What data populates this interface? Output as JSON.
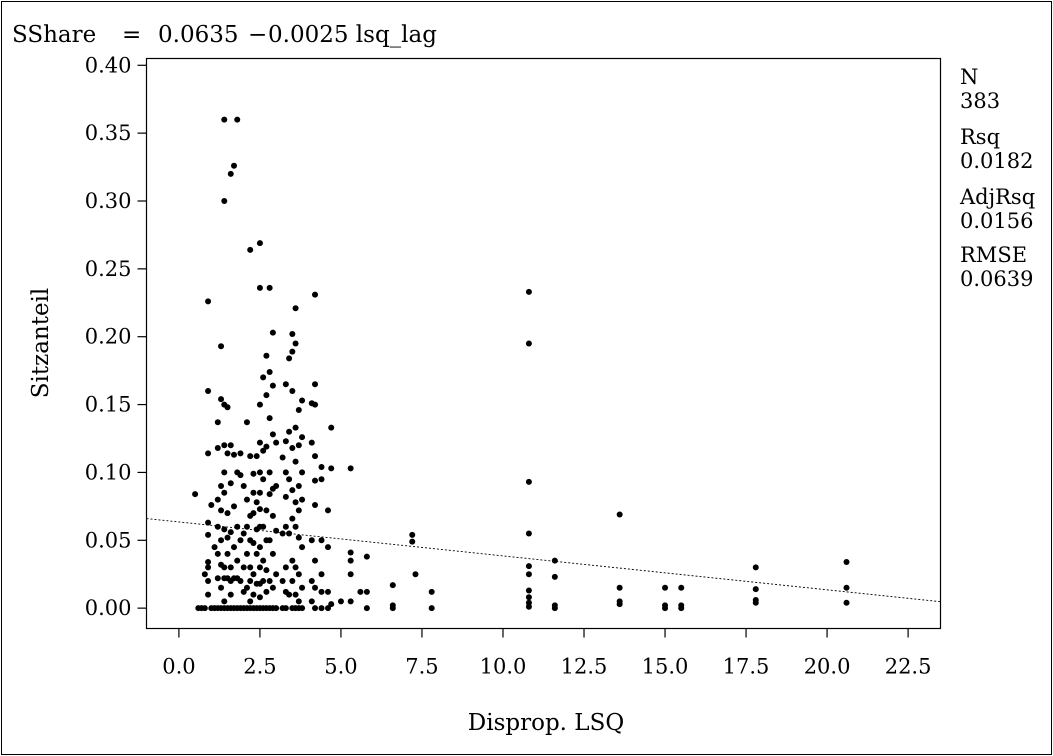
{
  "header": {
    "equation_lhs": "SShare",
    "equation_eq": "=",
    "equation_intercept": "0.0635",
    "equation_sign": "−",
    "equation_slope_term": "0.0025 lsq_lag"
  },
  "stats": [
    {
      "label": "N",
      "value": "383"
    },
    {
      "label": "Rsq",
      "value": "0.0182"
    },
    {
      "label": "AdjRsq",
      "value": "0.0156"
    },
    {
      "label": "RMSE",
      "value": "0.0639"
    }
  ],
  "chart_data": {
    "type": "scatter",
    "title": "",
    "xlabel": "Disprop. LSQ",
    "ylabel": "Sitzanteil",
    "xlim": [
      -1.0,
      23.5
    ],
    "ylim": [
      -0.015,
      0.405
    ],
    "x_ticks": [
      0.0,
      2.5,
      5.0,
      7.5,
      10.0,
      12.5,
      15.0,
      17.5,
      20.0,
      22.5
    ],
    "x_tick_labels": [
      "0.0",
      "2.5",
      "5.0",
      "7.5",
      "10.0",
      "12.5",
      "15.0",
      "17.5",
      "20.0",
      "22.5"
    ],
    "y_ticks": [
      0.0,
      0.05,
      0.1,
      0.15,
      0.2,
      0.25,
      0.3,
      0.35,
      0.4
    ],
    "y_tick_labels": [
      "0.00",
      "0.05",
      "0.10",
      "0.15",
      "0.20",
      "0.25",
      "0.30",
      "0.35",
      "0.40"
    ],
    "grid": false,
    "fit_line": {
      "intercept": 0.0635,
      "slope": -0.0025,
      "style": "dotted"
    },
    "points": [
      [
        0.5,
        0.084
      ],
      [
        0.6,
        0.0
      ],
      [
        0.7,
        0.0
      ],
      [
        0.8,
        0.025
      ],
      [
        0.8,
        0.0
      ],
      [
        0.9,
        0.063
      ],
      [
        0.9,
        0.054
      ],
      [
        0.9,
        0.226
      ],
      [
        0.9,
        0.16
      ],
      [
        0.9,
        0.114
      ],
      [
        0.9,
        0.034
      ],
      [
        0.9,
        0.03
      ],
      [
        0.9,
        0.02
      ],
      [
        0.9,
        0.01
      ],
      [
        1.0,
        0.076
      ],
      [
        1.0,
        0.0
      ],
      [
        1.1,
        0.045
      ],
      [
        1.1,
        0.0
      ],
      [
        1.2,
        0.137
      ],
      [
        1.2,
        0.118
      ],
      [
        1.2,
        0.08
      ],
      [
        1.2,
        0.06
      ],
      [
        1.2,
        0.04
      ],
      [
        1.2,
        0.022
      ],
      [
        1.2,
        0.0
      ],
      [
        1.3,
        0.193
      ],
      [
        1.3,
        0.154
      ],
      [
        1.3,
        0.09
      ],
      [
        1.3,
        0.072
      ],
      [
        1.3,
        0.05
      ],
      [
        1.3,
        0.032
      ],
      [
        1.3,
        0.015
      ],
      [
        1.3,
        0.0
      ],
      [
        1.4,
        0.36
      ],
      [
        1.4,
        0.3
      ],
      [
        1.4,
        0.15
      ],
      [
        1.4,
        0.12
      ],
      [
        1.4,
        0.1
      ],
      [
        1.4,
        0.085
      ],
      [
        1.4,
        0.058
      ],
      [
        1.4,
        0.03
      ],
      [
        1.4,
        0.022
      ],
      [
        1.4,
        0.005
      ],
      [
        1.4,
        0.0
      ],
      [
        1.5,
        0.148
      ],
      [
        1.5,
        0.114
      ],
      [
        1.5,
        0.07
      ],
      [
        1.5,
        0.052
      ],
      [
        1.5,
        0.04
      ],
      [
        1.5,
        0.022
      ],
      [
        1.5,
        0.0
      ],
      [
        1.6,
        0.32
      ],
      [
        1.6,
        0.12
      ],
      [
        1.6,
        0.092
      ],
      [
        1.6,
        0.056
      ],
      [
        1.6,
        0.03
      ],
      [
        1.6,
        0.02
      ],
      [
        1.6,
        0.01
      ],
      [
        1.6,
        0.0
      ],
      [
        1.7,
        0.326
      ],
      [
        1.7,
        0.113
      ],
      [
        1.7,
        0.075
      ],
      [
        1.7,
        0.045
      ],
      [
        1.7,
        0.022
      ],
      [
        1.7,
        0.0
      ],
      [
        1.8,
        0.36
      ],
      [
        1.8,
        0.1
      ],
      [
        1.8,
        0.06
      ],
      [
        1.8,
        0.035
      ],
      [
        1.8,
        0.022
      ],
      [
        1.8,
        0.0
      ],
      [
        1.9,
        0.114
      ],
      [
        1.9,
        0.098
      ],
      [
        1.9,
        0.05
      ],
      [
        1.9,
        0.02
      ],
      [
        1.9,
        0.0
      ],
      [
        2.0,
        0.09
      ],
      [
        2.0,
        0.055
      ],
      [
        2.0,
        0.03
      ],
      [
        2.0,
        0.012
      ],
      [
        2.0,
        0.0
      ],
      [
        2.1,
        0.137
      ],
      [
        2.1,
        0.08
      ],
      [
        2.1,
        0.06
      ],
      [
        2.1,
        0.04
      ],
      [
        2.1,
        0.015
      ],
      [
        2.1,
        0.0
      ],
      [
        2.2,
        0.264
      ],
      [
        2.2,
        0.112
      ],
      [
        2.2,
        0.068
      ],
      [
        2.2,
        0.05
      ],
      [
        2.2,
        0.03
      ],
      [
        2.2,
        0.02
      ],
      [
        2.2,
        0.005
      ],
      [
        2.2,
        0.0
      ],
      [
        2.3,
        0.099
      ],
      [
        2.3,
        0.085
      ],
      [
        2.3,
        0.07
      ],
      [
        2.3,
        0.048
      ],
      [
        2.3,
        0.025
      ],
      [
        2.3,
        0.01
      ],
      [
        2.3,
        0.0
      ],
      [
        2.4,
        0.112
      ],
      [
        2.4,
        0.078
      ],
      [
        2.4,
        0.058
      ],
      [
        2.4,
        0.04
      ],
      [
        2.4,
        0.018
      ],
      [
        2.4,
        0.0
      ],
      [
        2.5,
        0.269
      ],
      [
        2.5,
        0.236
      ],
      [
        2.5,
        0.15
      ],
      [
        2.5,
        0.122
      ],
      [
        2.5,
        0.1
      ],
      [
        2.5,
        0.085
      ],
      [
        2.5,
        0.073
      ],
      [
        2.5,
        0.06
      ],
      [
        2.5,
        0.045
      ],
      [
        2.5,
        0.03
      ],
      [
        2.5,
        0.018
      ],
      [
        2.5,
        0.008
      ],
      [
        2.5,
        0.0
      ],
      [
        2.6,
        0.17
      ],
      [
        2.6,
        0.116
      ],
      [
        2.6,
        0.095
      ],
      [
        2.6,
        0.06
      ],
      [
        2.6,
        0.035
      ],
      [
        2.6,
        0.02
      ],
      [
        2.6,
        0.0
      ],
      [
        2.7,
        0.186
      ],
      [
        2.7,
        0.157
      ],
      [
        2.7,
        0.119
      ],
      [
        2.7,
        0.072
      ],
      [
        2.7,
        0.05
      ],
      [
        2.7,
        0.028
      ],
      [
        2.7,
        0.012
      ],
      [
        2.7,
        0.0
      ],
      [
        2.8,
        0.236
      ],
      [
        2.8,
        0.174
      ],
      [
        2.8,
        0.14
      ],
      [
        2.8,
        0.1
      ],
      [
        2.8,
        0.084
      ],
      [
        2.8,
        0.05
      ],
      [
        2.8,
        0.02
      ],
      [
        2.8,
        0.0
      ],
      [
        2.9,
        0.203
      ],
      [
        2.9,
        0.164
      ],
      [
        2.9,
        0.128
      ],
      [
        2.9,
        0.088
      ],
      [
        2.9,
        0.068
      ],
      [
        2.9,
        0.04
      ],
      [
        2.9,
        0.015
      ],
      [
        2.9,
        0.0
      ],
      [
        3.0,
        0.122
      ],
      [
        3.0,
        0.09
      ],
      [
        3.0,
        0.057
      ],
      [
        3.0,
        0.025
      ],
      [
        3.0,
        0.0
      ],
      [
        3.2,
        0.111
      ],
      [
        3.2,
        0.055
      ],
      [
        3.2,
        0.02
      ],
      [
        3.2,
        0.0
      ],
      [
        3.3,
        0.165
      ],
      [
        3.3,
        0.123
      ],
      [
        3.3,
        0.1
      ],
      [
        3.3,
        0.082
      ],
      [
        3.3,
        0.06
      ],
      [
        3.3,
        0.03
      ],
      [
        3.3,
        0.012
      ],
      [
        3.3,
        0.0
      ],
      [
        3.4,
        0.184
      ],
      [
        3.4,
        0.13
      ],
      [
        3.4,
        0.095
      ],
      [
        3.4,
        0.055
      ],
      [
        3.4,
        0.01
      ],
      [
        3.5,
        0.202
      ],
      [
        3.5,
        0.189
      ],
      [
        3.5,
        0.16
      ],
      [
        3.5,
        0.118
      ],
      [
        3.5,
        0.087
      ],
      [
        3.5,
        0.066
      ],
      [
        3.5,
        0.035
      ],
      [
        3.5,
        0.02
      ],
      [
        3.5,
        0.0
      ],
      [
        3.6,
        0.221
      ],
      [
        3.6,
        0.195
      ],
      [
        3.6,
        0.133
      ],
      [
        3.6,
        0.108
      ],
      [
        3.6,
        0.078
      ],
      [
        3.6,
        0.06
      ],
      [
        3.6,
        0.03
      ],
      [
        3.6,
        0.01
      ],
      [
        3.6,
        0.0
      ],
      [
        3.7,
        0.146
      ],
      [
        3.7,
        0.12
      ],
      [
        3.7,
        0.09
      ],
      [
        3.7,
        0.072
      ],
      [
        3.7,
        0.052
      ],
      [
        3.7,
        0.025
      ],
      [
        3.7,
        0.005
      ],
      [
        3.7,
        0.0
      ],
      [
        3.8,
        0.153
      ],
      [
        3.8,
        0.126
      ],
      [
        3.8,
        0.1
      ],
      [
        3.8,
        0.08
      ],
      [
        3.8,
        0.045
      ],
      [
        3.8,
        0.015
      ],
      [
        3.8,
        0.0
      ],
      [
        4.1,
        0.151
      ],
      [
        4.1,
        0.122
      ],
      [
        4.1,
        0.05
      ],
      [
        4.1,
        0.02
      ],
      [
        4.1,
        0.005
      ],
      [
        4.2,
        0.231
      ],
      [
        4.2,
        0.165
      ],
      [
        4.2,
        0.15
      ],
      [
        4.2,
        0.112
      ],
      [
        4.2,
        0.094
      ],
      [
        4.2,
        0.076
      ],
      [
        4.2,
        0.035
      ],
      [
        4.2,
        0.015
      ],
      [
        4.2,
        0.0
      ],
      [
        4.4,
        0.104
      ],
      [
        4.4,
        0.095
      ],
      [
        4.4,
        0.05
      ],
      [
        4.4,
        0.025
      ],
      [
        4.4,
        0.012
      ],
      [
        4.4,
        0.0
      ],
      [
        4.6,
        0.072
      ],
      [
        4.6,
        0.045
      ],
      [
        4.6,
        0.012
      ],
      [
        4.6,
        0.0
      ],
      [
        4.7,
        0.133
      ],
      [
        4.7,
        0.103
      ],
      [
        4.7,
        0.003
      ],
      [
        5.0,
        0.005
      ],
      [
        5.3,
        0.103
      ],
      [
        5.3,
        0.041
      ],
      [
        5.3,
        0.035
      ],
      [
        5.3,
        0.025
      ],
      [
        5.3,
        0.005
      ],
      [
        5.6,
        0.012
      ],
      [
        5.8,
        0.038
      ],
      [
        5.8,
        0.012
      ],
      [
        5.8,
        0.0
      ],
      [
        6.6,
        0.017
      ],
      [
        6.6,
        0.002
      ],
      [
        6.6,
        0.0
      ],
      [
        7.2,
        0.054
      ],
      [
        7.2,
        0.049
      ],
      [
        7.3,
        0.025
      ],
      [
        7.8,
        0.012
      ],
      [
        7.8,
        0.0
      ],
      [
        10.8,
        0.233
      ],
      [
        10.8,
        0.195
      ],
      [
        10.8,
        0.093
      ],
      [
        10.8,
        0.055
      ],
      [
        10.8,
        0.031
      ],
      [
        10.8,
        0.025
      ],
      [
        10.8,
        0.013
      ],
      [
        10.8,
        0.008
      ],
      [
        10.8,
        0.004
      ],
      [
        10.8,
        0.001
      ],
      [
        11.6,
        0.035
      ],
      [
        11.6,
        0.023
      ],
      [
        11.6,
        0.002
      ],
      [
        11.6,
        0.0
      ],
      [
        13.6,
        0.069
      ],
      [
        13.6,
        0.015
      ],
      [
        13.6,
        0.005
      ],
      [
        13.6,
        0.003
      ],
      [
        15.0,
        0.015
      ],
      [
        15.0,
        0.002
      ],
      [
        15.0,
        0.0
      ],
      [
        15.5,
        0.015
      ],
      [
        15.5,
        0.002
      ],
      [
        15.5,
        0.0
      ],
      [
        17.8,
        0.03
      ],
      [
        17.8,
        0.014
      ],
      [
        17.8,
        0.006
      ],
      [
        17.8,
        0.004
      ],
      [
        20.6,
        0.034
      ],
      [
        20.6,
        0.015
      ],
      [
        20.6,
        0.004
      ]
    ]
  }
}
